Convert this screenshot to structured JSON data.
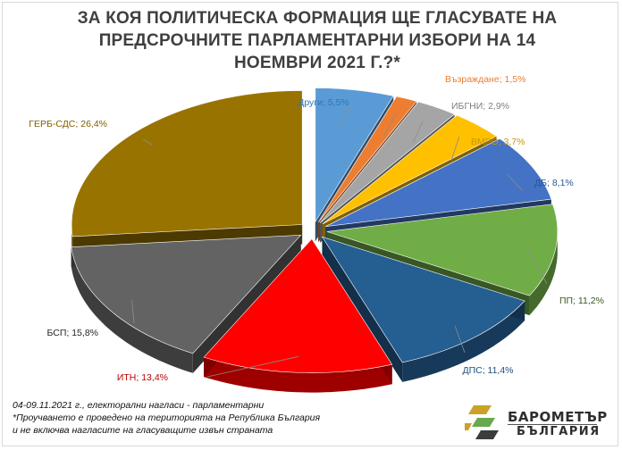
{
  "chart_data": {
    "type": "pie",
    "title_lines": [
      "ЗА КОЯ ПОЛИТИЧЕСКА ФОРМАЦИЯ ЩЕ ГЛАСУВАТЕ НА",
      "ПРЕДСРОЧНИТЕ ПАРЛАМЕНТАРНИ ИЗБОРИ НА 14",
      "НОЕМВРИ 2021 Г.?*"
    ],
    "slices": [
      {
        "label": "Други; 5,5%",
        "name": "Други",
        "value": 5.5,
        "color": "#5b9bd5",
        "label_color": "#2e75b6"
      },
      {
        "label": "Възраждане; 1,5%",
        "name": "Възраждане",
        "value": 1.5,
        "color": "#ed7d31",
        "label_color": "#ed7d31"
      },
      {
        "label": "ИБГНИ; 2,9%",
        "name": "ИБГНИ",
        "value": 2.9,
        "color": "#a5a5a5",
        "label_color": "#7f7f7f"
      },
      {
        "label": "ВМРО; 3,7%",
        "name": "ВМРО",
        "value": 3.7,
        "color": "#ffc000",
        "label_color": "#c89600"
      },
      {
        "label": "ДБ; 8,1%",
        "name": "ДБ",
        "value": 8.1,
        "color": "#4472c4",
        "label_color": "#2f5597"
      },
      {
        "label": "ПП; 11,2%",
        "name": "ПП",
        "value": 11.2,
        "color": "#70ad47",
        "label_color": "#385723"
      },
      {
        "label": "ДПС; 11,4%",
        "name": "ДПС",
        "value": 11.4,
        "color": "#255e91",
        "label_color": "#1f4e79"
      },
      {
        "label": "ИТН; 13,4%",
        "name": "ИТН",
        "value": 13.4,
        "color": "#ff0000",
        "label_color": "#c00000"
      },
      {
        "label": "БСП; 15,8%",
        "name": "БСП",
        "value": 15.8,
        "color": "#636363",
        "label_color": "#262626"
      },
      {
        "label": "ГЕРБ-СДС; 26,4%",
        "name": "ГЕРБ-СДС",
        "value": 26.4,
        "color": "#997300",
        "label_color": "#7f6000"
      }
    ],
    "three_d": true,
    "exploded": true
  },
  "footer": {
    "date_line": "04-09.11.2021 г., електорални нагласи - парламентарни",
    "note_line1": "*Проучването е проведено на територията на Република България",
    "note_line2": "и не включва нагласите на гласуващите извън страната"
  },
  "logo": {
    "word1": "БАРОМЕТЪР",
    "word2": "БЪЛГАРИЯ",
    "colors": [
      "#c9a227",
      "#6aa84f",
      "#3c3c3c"
    ]
  }
}
